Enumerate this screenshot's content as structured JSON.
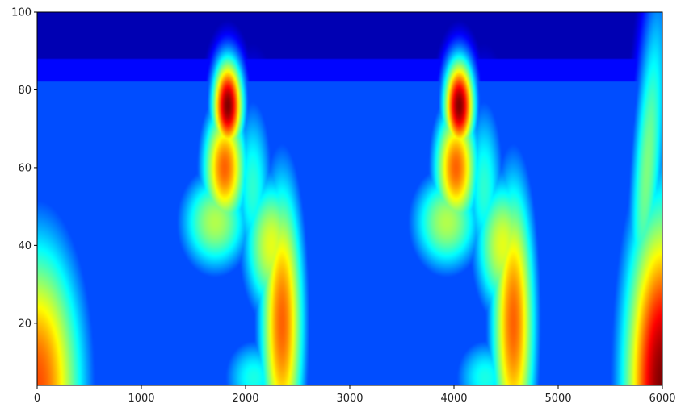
{
  "chart_data": {
    "type": "heatmap",
    "title": "",
    "xlabel": "",
    "ylabel": "",
    "colormap": "jet",
    "grid": false,
    "xlim": [
      0,
      6000
    ],
    "ylim": [
      4,
      100
    ],
    "x_ticks": [
      0,
      1000,
      2000,
      3000,
      4000,
      5000,
      6000
    ],
    "y_ticks": [
      20,
      40,
      60,
      80,
      100
    ],
    "value_range": [
      0,
      1
    ],
    "regions": [
      {
        "label": "peak",
        "x": 1830,
        "y": 76,
        "value": 1.0
      },
      {
        "label": "peak",
        "x": 4050,
        "y": 76,
        "value": 1.0
      },
      {
        "label": "band",
        "x": 2350,
        "y": 20,
        "value": 0.78
      },
      {
        "label": "band",
        "x": 4580,
        "y": 20,
        "value": 0.78
      },
      {
        "label": "corner",
        "x": 6000,
        "y": 4,
        "value": 1.0
      },
      {
        "label": "corner",
        "x": 0,
        "y": 4,
        "value": 0.78
      }
    ]
  }
}
